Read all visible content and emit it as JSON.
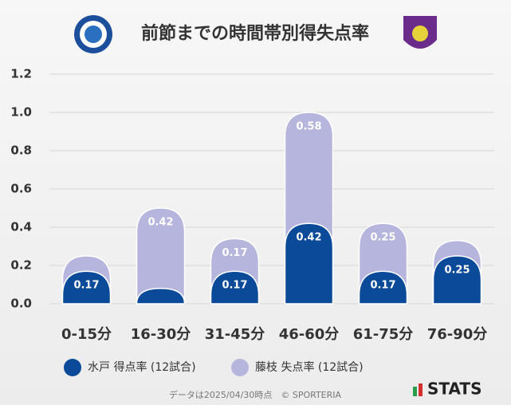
{
  "chart_data": {
    "type": "stacked_bar",
    "title": "前節までの時間帯別得失点率",
    "categories": [
      "0-15分",
      "16-30分",
      "31-45分",
      "46-60分",
      "61-75分",
      "76-90分"
    ],
    "series": [
      {
        "name": "水戸 得点率 (12試合)",
        "color": "#0b4a99",
        "values": [
          0.17,
          0.08,
          0.17,
          0.42,
          0.17,
          0.25
        ],
        "value_labels": [
          "0.17",
          null,
          "0.17",
          "0.42",
          "0.17",
          "0.25"
        ]
      },
      {
        "name": "藤枝 失点率 (12試合)",
        "color": "#b5b5de",
        "values": [
          0.08,
          0.42,
          0.17,
          0.58,
          0.25,
          0.08
        ],
        "value_labels": [
          null,
          "0.42",
          "0.17",
          "0.58",
          "0.25",
          null
        ]
      }
    ],
    "ylim": [
      0,
      1.2
    ],
    "yticks": [
      {
        "value": 0,
        "label": "0.0"
      },
      0.2,
      0.4,
      0.6,
      0.8,
      {
        "value": 1,
        "label": "1.0"
      },
      1.2
    ],
    "grid": true,
    "legend": "bottom",
    "footer": "データは2025/04/30時点　© SPORTERIA",
    "brand": "STATS"
  }
}
